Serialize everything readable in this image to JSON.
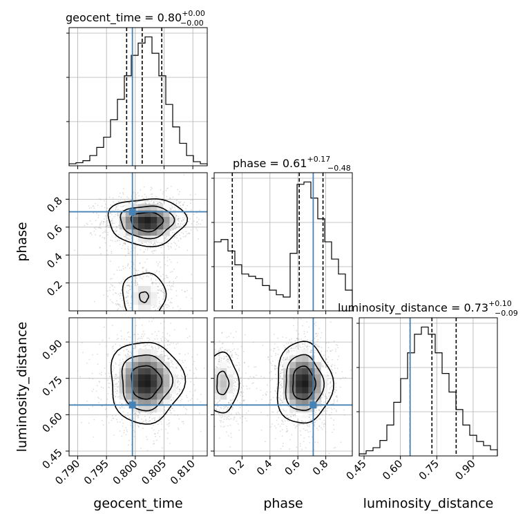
{
  "chart_data": {
    "type": "corner",
    "parameters": [
      "geocent_time",
      "phase",
      "luminosity_distance"
    ],
    "truths": {
      "geocent_time": 0.7995,
      "phase": 0.71,
      "luminosity_distance": 0.64
    },
    "truth_color": "#4682b4",
    "titles": [
      {
        "main": "geocent_time = 0.80",
        "sup": "+0.00",
        "sub": "−0.00"
      },
      {
        "main": "phase = 0.61",
        "sup": "+0.17",
        "sub": "−0.48"
      },
      {
        "main": "luminosity_distance = 0.73",
        "sup": "+0.10",
        "sub": "−0.09"
      }
    ],
    "axis_labels": {
      "geocent_time": "geocent_time",
      "phase": "phase",
      "luminosity_distance": "luminosity_distance"
    },
    "axes": {
      "geocent_time": {
        "range": [
          0.7885,
          0.8125
        ],
        "ticks": [
          0.79,
          0.795,
          0.8,
          0.805,
          0.81
        ],
        "tick_labels": [
          "0.790",
          "0.795",
          "0.800",
          "0.805",
          "0.810"
        ]
      },
      "phase": {
        "range": [
          0.0,
          0.99
        ],
        "ticks": [
          0.2,
          0.4,
          0.6,
          0.8
        ],
        "tick_labels": [
          "0.2",
          "0.4",
          "0.6",
          "0.8"
        ]
      },
      "luminosity_distance": {
        "range": [
          0.43,
          1.0
        ],
        "ticks": [
          0.45,
          0.6,
          0.75,
          0.9
        ],
        "tick_labels": [
          "0.45",
          "0.60",
          "0.75",
          "0.90"
        ]
      }
    },
    "histograms": {
      "geocent_time": {
        "bin_edges": [
          0.7885,
          0.7897,
          0.7909,
          0.7921,
          0.7933,
          0.7945,
          0.7957,
          0.7969,
          0.7981,
          0.7993,
          0.8005,
          0.8017,
          0.8029,
          0.8041,
          0.8053,
          0.8065,
          0.8077,
          0.8089,
          0.8101,
          0.8113,
          0.8125
        ],
        "counts": [
          2,
          3,
          5,
          10,
          18,
          28,
          45,
          65,
          88,
          108,
          120,
          126,
          110,
          88,
          60,
          38,
          22,
          10,
          4,
          2
        ],
        "quantiles": [
          0.7985,
          0.8012,
          0.8046
        ]
      },
      "phase": {
        "bin_edges": [
          0.0,
          0.0495,
          0.099,
          0.1485,
          0.198,
          0.2475,
          0.297,
          0.3465,
          0.396,
          0.4455,
          0.495,
          0.5445,
          0.594,
          0.6435,
          0.693,
          0.7425,
          0.792,
          0.8415,
          0.891,
          0.9405,
          0.99
        ],
        "counts": [
          60,
          62,
          52,
          40,
          32,
          30,
          28,
          22,
          18,
          14,
          12,
          50,
          110,
          112,
          98,
          80,
          60,
          45,
          32,
          18
        ],
        "quantiles": [
          0.13,
          0.61,
          0.78
        ]
      },
      "luminosity_distance": {
        "bin_edges": [
          0.43,
          0.4585,
          0.487,
          0.5155,
          0.544,
          0.5725,
          0.601,
          0.6295,
          0.658,
          0.6865,
          0.715,
          0.7435,
          0.772,
          0.8005,
          0.829,
          0.8575,
          0.886,
          0.9145,
          0.943,
          0.9715,
          1.0
        ],
        "counts": [
          2,
          5,
          8,
          15,
          30,
          52,
          75,
          100,
          118,
          125,
          118,
          100,
          80,
          62,
          45,
          30,
          20,
          14,
          10,
          6
        ],
        "quantiles": [
          0.64,
          0.73,
          0.83
        ]
      }
    },
    "densities_2d": [
      {
        "x": "geocent_time",
        "y": "phase",
        "modes": [
          {
            "cx": 0.802,
            "cy": 0.64,
            "sx": 0.0034,
            "sy": 0.085,
            "w": 1.0
          },
          {
            "cx": 0.8015,
            "cy": 0.1,
            "sx": 0.0025,
            "sy": 0.12,
            "w": 0.42
          }
        ]
      },
      {
        "x": "geocent_time",
        "y": "luminosity_distance",
        "modes": [
          {
            "cx": 0.8018,
            "cy": 0.735,
            "sx": 0.0032,
            "sy": 0.085,
            "w": 1.0
          }
        ]
      },
      {
        "x": "phase",
        "y": "luminosity_distance",
        "modes": [
          {
            "cx": 0.64,
            "cy": 0.73,
            "sx": 0.1,
            "sy": 0.085,
            "w": 1.0
          },
          {
            "cx": 0.06,
            "cy": 0.73,
            "sx": 0.07,
            "sy": 0.08,
            "w": 0.48
          }
        ]
      }
    ]
  }
}
